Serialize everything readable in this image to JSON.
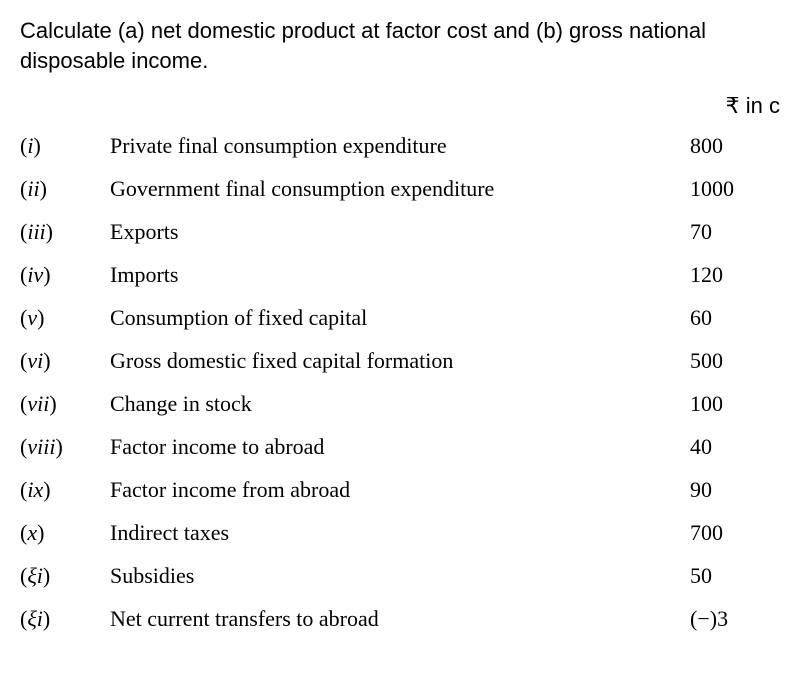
{
  "question": "Calculate (a) net domestic product at factor cost and (b) gross national disposable income.",
  "currency_header": "₹ in c",
  "rows": [
    {
      "index_html": "<span class='paren'>(</span>i<span class='paren'>)</span>",
      "label": "Private final consumption expenditure",
      "value": "800"
    },
    {
      "index_html": "<span class='paren'>(</span>ii<span class='paren'>)</span>",
      "label": "Government final consumption expenditure",
      "value": "1000"
    },
    {
      "index_html": "<span class='paren'>(</span>iii<span class='paren'>)</span>",
      "label": "Exports",
      "value": "70"
    },
    {
      "index_html": "<span class='paren'>(</span>iv<span class='paren'>)</span>",
      "label": "Imports",
      "value": "120"
    },
    {
      "index_html": "<span class='paren'>(</span>v<span class='paren'>)</span>",
      "label": "Consumption of fixed capital",
      "value": "60"
    },
    {
      "index_html": "<span class='paren'>(</span>vi<span class='paren'>)</span>",
      "label": "Gross domestic fixed capital formation",
      "value": "500"
    },
    {
      "index_html": "<span class='paren'>(</span>vii<span class='paren'>)</span>",
      "label": "Change in stock",
      "value": "100"
    },
    {
      "index_html": "<span class='paren'>(</span>viii<span class='paren'>)</span>",
      "label": "Factor income to abroad",
      "value": "40"
    },
    {
      "index_html": "<span class='paren'>(</span>ix<span class='paren'>)</span>",
      "label": "Factor income from abroad",
      "value": "90"
    },
    {
      "index_html": "<span class='paren'>(</span>x<span class='paren'>)</span>",
      "label": "Indirect taxes",
      "value": "700"
    },
    {
      "index_html": "<span class='paren'>(</span>ξi<span class='paren'>)</span>",
      "label": "Subsidies",
      "value": "50"
    },
    {
      "index_html": "<span class='paren'>(</span>ξi<span class='paren'>)</span>",
      "label": "Net current transfers to abroad",
      "value_html": "<span class='paren'>(</span>−<span class='paren'>)</span>3"
    }
  ],
  "styling": {
    "background_color": "#ffffff",
    "text_color": "#000000",
    "question_font": "Arial, Helvetica, sans-serif",
    "data_font": "Georgia, 'Times New Roman', serif",
    "question_fontsize": 22,
    "data_fontsize": 22,
    "row_spacing": 17,
    "index_col_width": 90,
    "value_col_width": 90
  }
}
